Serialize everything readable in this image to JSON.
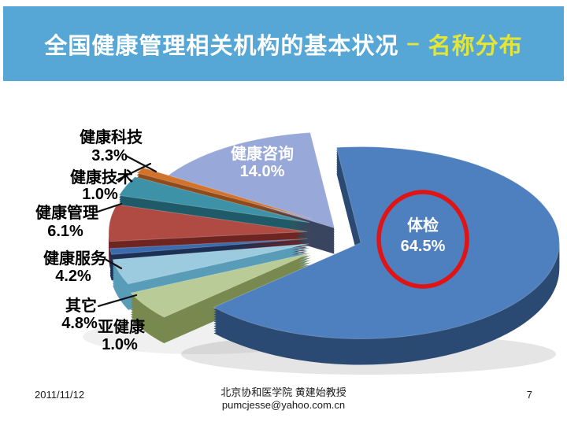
{
  "slide": {
    "title": {
      "main": "全国健康管理相关机构的基本状况",
      "separator": "–",
      "accent": "名称分布"
    },
    "colors": {
      "header_bg": "#57A7D6",
      "title_text": "#FFFFFF",
      "title_accent": "#E3E637",
      "annotation_circle": "#E01414",
      "label_text": "#000000",
      "inside_label_text": "#FFFFFF"
    },
    "footer": {
      "date": "2011/11/12",
      "affiliation": "北京协和医学院 黄建始教授",
      "email": "pumcjesse@yahoo.com.cn",
      "page_number": "7"
    }
  },
  "chart_data": {
    "type": "pie",
    "style": "3d-exploded",
    "unit": "%",
    "legend_position": "none",
    "slices": [
      {
        "label": "健康咨询",
        "value": 14.0,
        "color": "#98A8D8",
        "wall": "#39455F",
        "label_placement": "inside"
      },
      {
        "label": "健康技术",
        "value": 1.0,
        "color": "#D2732D",
        "wall": "#8F4B1B",
        "label_placement": "outside"
      },
      {
        "label": "健康科技",
        "value": 3.3,
        "color": "#3E92A8",
        "wall": "#1F5A68",
        "label_placement": "outside"
      },
      {
        "label": "健康管理",
        "value": 6.1,
        "color": "#B04B44",
        "wall": "#6E2420",
        "label_placement": "outside"
      },
      {
        "label": "亚健康",
        "value": 1.0,
        "color": "#3A6BAE",
        "wall": "#1C3055",
        "label_placement": "outside"
      },
      {
        "label": "健康服务",
        "value": 4.2,
        "color": "#9CCADE",
        "wall": "#589CB8",
        "label_placement": "outside"
      },
      {
        "label": "其它",
        "value": 4.8,
        "color": "#B9CB96",
        "wall": "#78894F",
        "label_placement": "outside"
      },
      {
        "label": "体检",
        "value": 64.5,
        "color": "#4E7FBE",
        "wall": "#2B4A73",
        "label_placement": "inside"
      }
    ],
    "highlight": {
      "target": "体检",
      "shape": "circle",
      "color": "#E01414"
    }
  }
}
